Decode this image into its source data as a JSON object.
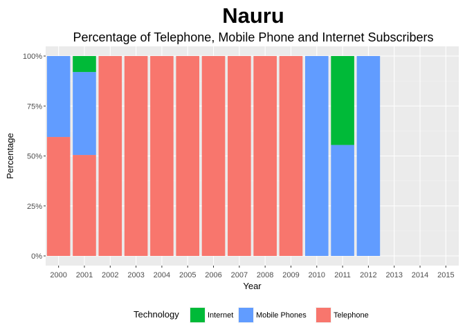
{
  "chart_data": {
    "type": "bar",
    "stacked": "percent",
    "title": "Nauru",
    "subtitle": "Percentage of Telephone, Mobile Phone and Internet Subscribers",
    "xlabel": "Year",
    "ylabel": "Percentage",
    "categories": [
      "2000",
      "2001",
      "2002",
      "2003",
      "2004",
      "2005",
      "2006",
      "2007",
      "2008",
      "2009",
      "2010",
      "2011",
      "2012",
      "2013",
      "2014",
      "2015"
    ],
    "yticks": [
      "0%",
      "25%",
      "50%",
      "75%",
      "100%"
    ],
    "ylim": [
      0,
      100
    ],
    "grid": true,
    "legend": {
      "title": "Technology",
      "position": "bottom"
    },
    "series": [
      {
        "name": "Internet",
        "color": "#00BA38",
        "values": [
          0,
          8,
          0,
          0,
          0,
          0,
          0,
          0,
          0,
          0,
          0,
          44.5,
          0,
          null,
          null,
          null
        ]
      },
      {
        "name": "Mobile Phones",
        "color": "#619CFF",
        "values": [
          40.5,
          41.5,
          0,
          0,
          0,
          0,
          0,
          0,
          0,
          0,
          100,
          55.5,
          100,
          null,
          null,
          null
        ]
      },
      {
        "name": "Telephone",
        "color": "#F8766D",
        "values": [
          59.5,
          50.5,
          100,
          100,
          100,
          100,
          100,
          100,
          100,
          100,
          0,
          0,
          0,
          null,
          null,
          null
        ]
      }
    ]
  }
}
